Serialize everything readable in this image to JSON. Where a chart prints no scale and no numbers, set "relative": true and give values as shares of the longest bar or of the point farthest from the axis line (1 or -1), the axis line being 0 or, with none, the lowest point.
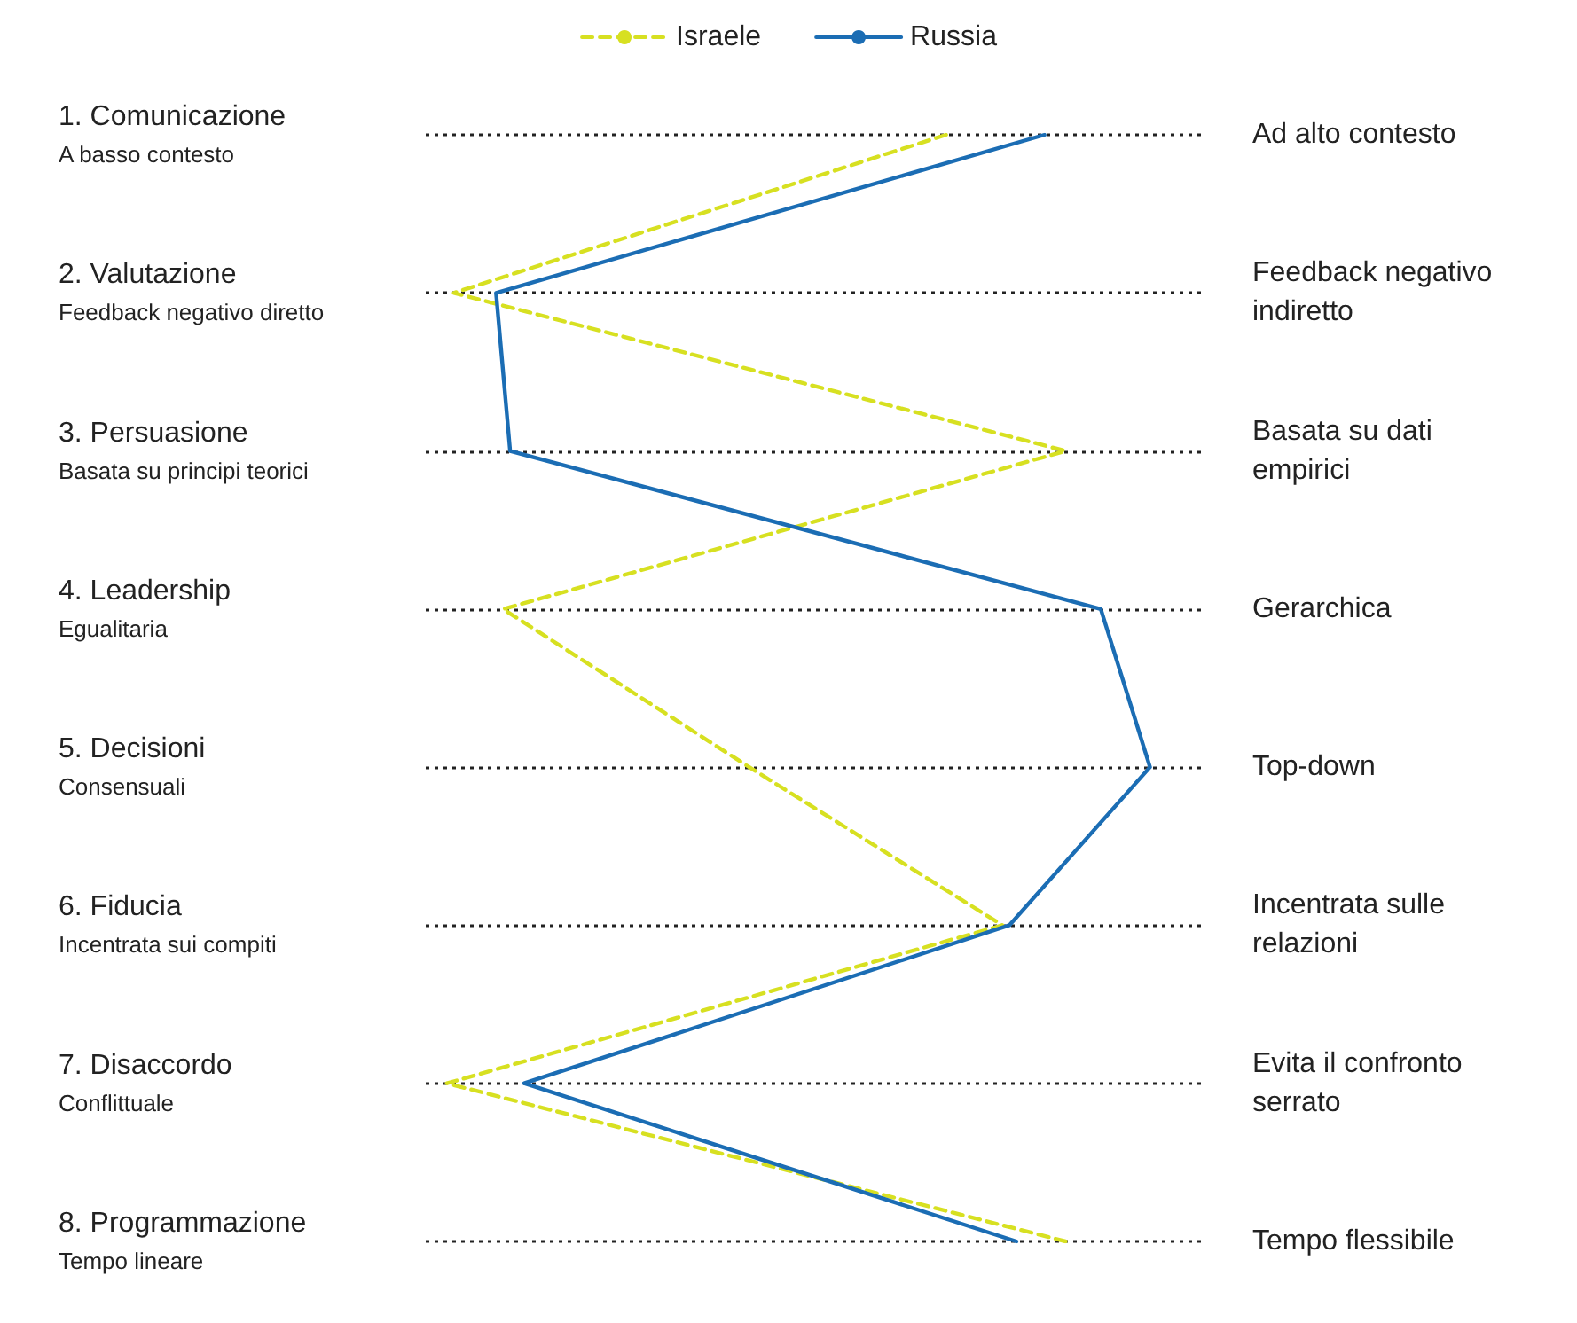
{
  "chart_data": {
    "type": "line",
    "orientation": "horizontal",
    "relative": true,
    "categories": [
      "1. Comunicazione\nA basso contesto",
      "2. Valutazione\nFeedback negativo diretto",
      "3. Persuasione\nBasata su principi teorici",
      "4. Leadership\nEgualitaria",
      "5. Decisioni\nConsensuali",
      "6. Fiducia\nIncentrata sui compiti",
      "7. Disaccordo\nConflittuale",
      "8. Programmazione\nTempo lineare"
    ],
    "y2_categories": [
      "Ad alto contesto",
      "Feedback negativo\nindiretto",
      "Basata su dati\nempirici",
      "Gerarchica",
      "Top-down",
      "Incentrata sulle\nrelazioni",
      "Evita il confronto\nserrato",
      "Tempo flessibile"
    ],
    "series": [
      {
        "name": "Israele",
        "color": "#d7e021",
        "line_style": "dashed",
        "values": [
          0.71,
          0.01,
          0.88,
          0.08,
          0.43,
          0.79,
          0,
          0.88
        ]
      },
      {
        "name": "Russia",
        "color": "#1b6db4",
        "line_style": "solid",
        "values": [
          0.85,
          0.07,
          0.09,
          0.93,
          1,
          0.8,
          0.11,
          0.81
        ]
      }
    ],
    "grid": "y",
    "legend": "top",
    "marker": "none"
  }
}
